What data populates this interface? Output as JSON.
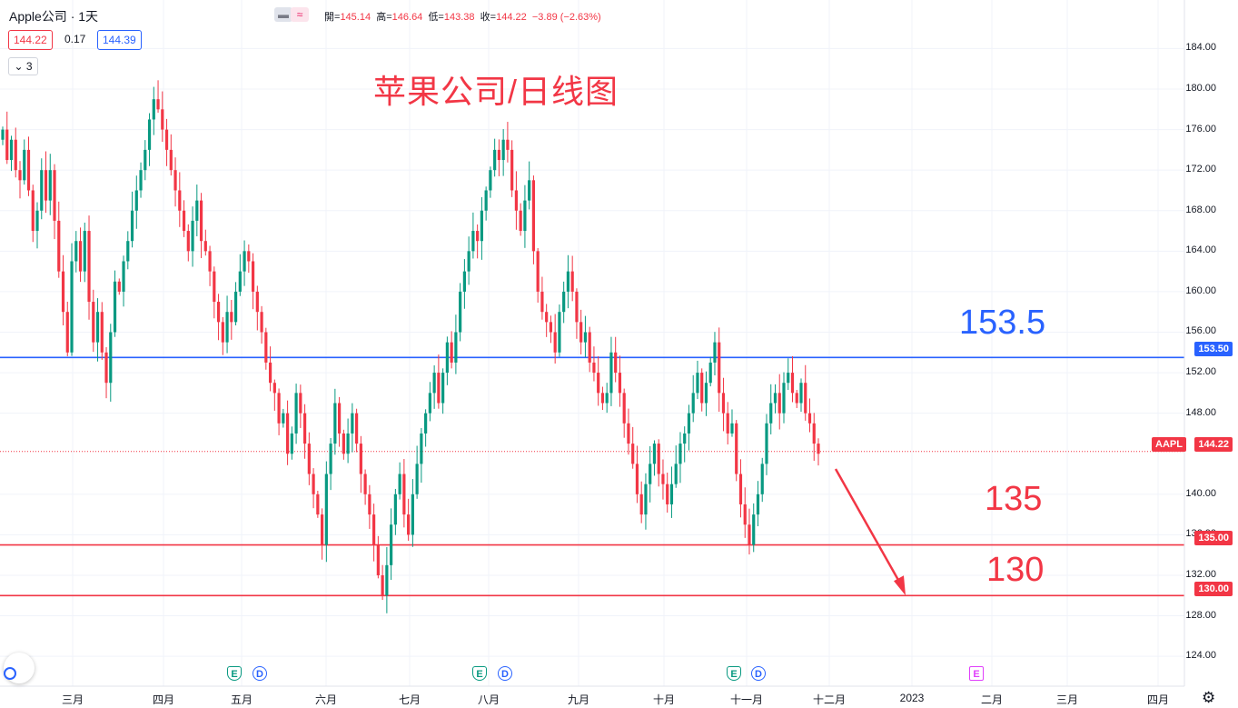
{
  "header": {
    "title": "Apple公司 · 1天",
    "mode_minus": "▬",
    "mode_approx": "≈",
    "ohlc": {
      "open_label": "開=",
      "open": "145.14",
      "high_label": "高=",
      "high": "146.64",
      "low_label": "低=",
      "low": "143.38",
      "close_label": "收=",
      "close": "144.22",
      "change": "−3.89",
      "change_pct": "(−2.63%)"
    },
    "bid": "144.22",
    "spread": "0.17",
    "ask": "144.39",
    "collapse": "3"
  },
  "chart_title": "苹果公司/日线图",
  "annotations": {
    "level_a": "153.5",
    "level_b": "135",
    "level_c": "130"
  },
  "price_axis": {
    "ticks": [
      "184.00",
      "180.00",
      "176.00",
      "172.00",
      "168.00",
      "164.00",
      "160.00",
      "156.00",
      "152.00",
      "148.00",
      "140.00",
      "136.00",
      "132.00",
      "128.00",
      "124.00"
    ],
    "labels": {
      "l1535": "153.50",
      "l135": "135.00",
      "l130": "130.00",
      "current": "144.22",
      "symbol": "AAPL"
    }
  },
  "time_axis": [
    "三月",
    "四月",
    "五月",
    "六月",
    "七月",
    "八月",
    "九月",
    "十月",
    "十一月",
    "十二月",
    "2023",
    "二月",
    "三月",
    "四月"
  ],
  "events": [
    "E",
    "D",
    "E",
    "D",
    "E",
    "D",
    "E"
  ],
  "colors": {
    "up": "#089981",
    "down": "#f23645",
    "blue_line": "#2962ff",
    "red_line": "#f23645"
  },
  "chart_data": {
    "type": "candlestick",
    "symbol": "AAPL",
    "interval": "1D",
    "ylim": [
      121.5,
      187
    ],
    "horizontal_lines": [
      153.5,
      135.0,
      130.0
    ],
    "current_price": 144.22,
    "projection_arrow": {
      "from": 142.5,
      "to": 130.0
    },
    "closes": [
      176,
      173,
      175,
      172,
      171,
      174,
      170,
      166,
      168,
      172,
      169,
      172,
      167,
      162,
      158,
      154,
      163,
      165,
      162,
      166,
      159,
      155,
      158,
      154,
      151,
      156,
      161,
      160,
      163,
      165,
      168,
      170,
      172,
      174,
      177,
      179,
      178,
      176,
      174,
      172,
      170,
      168,
      166,
      164,
      167,
      169,
      165,
      164,
      162,
      159,
      157,
      155,
      158,
      157,
      160,
      162,
      164,
      163,
      160,
      158,
      156,
      153,
      151,
      150,
      147,
      148,
      144,
      146,
      150,
      148,
      145,
      142,
      140,
      138,
      135,
      142,
      145,
      149,
      146,
      144,
      146,
      148,
      145,
      142,
      140,
      138,
      135,
      132,
      130,
      133,
      137,
      140,
      142,
      138,
      136,
      140,
      143,
      146,
      148,
      150,
      152,
      149,
      152,
      155,
      153,
      156,
      160,
      162,
      164,
      166,
      165,
      168,
      170,
      172,
      174,
      173,
      175,
      174,
      170,
      168,
      166,
      169,
      171,
      164,
      160,
      158,
      157,
      156,
      154,
      158,
      160,
      162,
      160,
      157,
      155,
      156,
      153,
      152,
      150,
      149,
      150,
      154,
      152,
      150,
      147,
      145,
      143,
      140,
      138,
      141,
      143,
      145,
      142,
      141,
      139,
      141,
      143,
      145,
      146,
      148,
      150,
      152,
      149,
      151,
      153,
      155,
      150,
      148,
      146,
      147,
      142,
      139,
      137,
      135,
      138,
      140,
      143,
      147,
      149,
      150,
      148,
      151,
      152,
      150,
      149,
      151,
      148,
      147,
      145,
      144
    ]
  }
}
